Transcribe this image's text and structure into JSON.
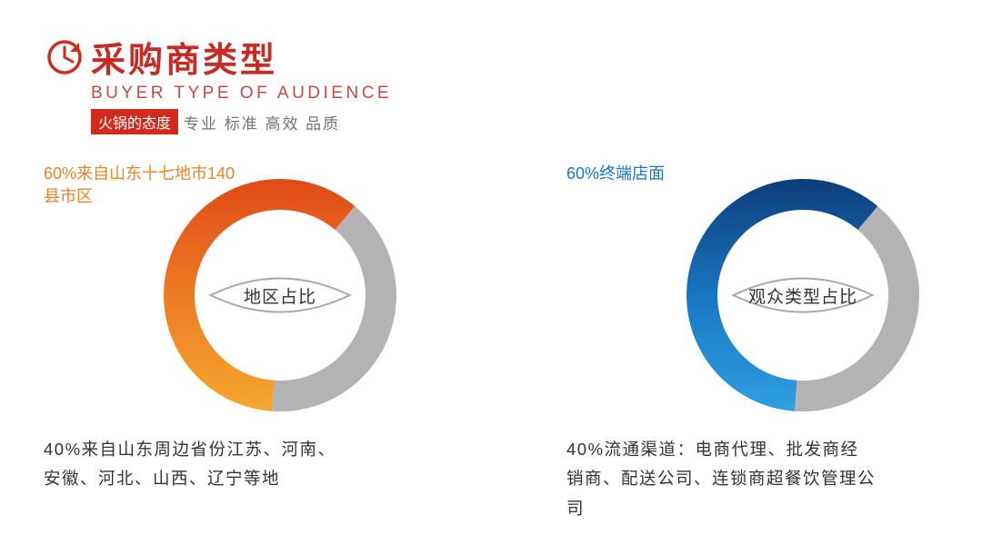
{
  "header": {
    "main_title": "采购商类型",
    "subtitle": "BUYER TYPE OF AUDIENCE",
    "red_tag": "火锅的态度",
    "tag_text": "专业 标准 高效 品质",
    "title_color": "#c92a24",
    "subtitle_color": "#c94a40",
    "red_tag_bg": "#d42a1e",
    "tag_text_color": "#737373",
    "icon_color": "#d42a1e"
  },
  "charts": [
    {
      "type": "donut",
      "top_label": "60%来自山东十七地市140县市区",
      "top_label_color": "#e8832a",
      "center_label": "地区占比",
      "bottom_label": "40%来自山东周边省份江苏、河南、安徽、河北、山西、辽宁等地",
      "slices": [
        {
          "percent": 60
        },
        {
          "percent": 40,
          "color": "#b3b3b3"
        }
      ],
      "gradient": {
        "start": "#e04a18",
        "mid": "#ed7b24",
        "end": "#f4a830"
      },
      "ring_width": 34,
      "outer_radius": 128
    },
    {
      "type": "donut",
      "top_label": "60%终端店面",
      "top_label_color": "#1976c1",
      "center_label": "观众类型占比",
      "bottom_label": "40%流通渠道：电商代理、批发商经销商、配送公司、连锁商超餐饮管理公司",
      "slices": [
        {
          "percent": 60
        },
        {
          "percent": 40,
          "color": "#b3b3b3"
        }
      ],
      "gradient": {
        "start": "#0d3d7a",
        "mid": "#1976c1",
        "end": "#2fa0e0"
      },
      "ring_width": 34,
      "outer_radius": 128
    }
  ],
  "styling": {
    "eye_outline": "#a8a8a8",
    "background": "#ffffff"
  }
}
